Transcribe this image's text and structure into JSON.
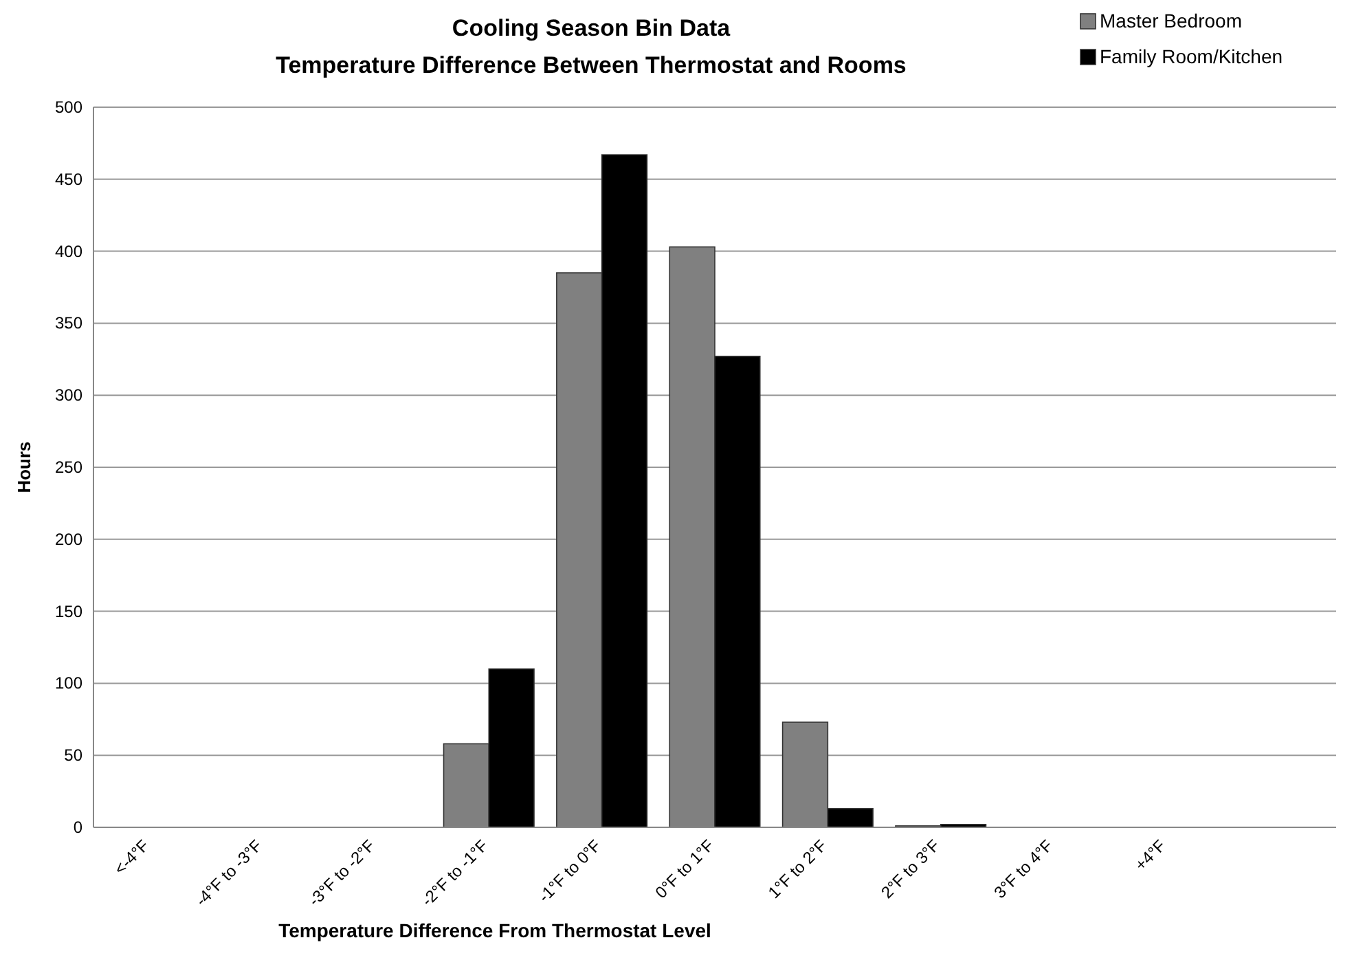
{
  "chart_data": {
    "type": "bar",
    "title": "Cooling Season Bin Data",
    "subtitle": "Temperature Difference Between Thermostat and Rooms",
    "xlabel": "Temperature Difference From Thermostat Level",
    "ylabel": "Hours",
    "categories": [
      "<-4°F",
      "-4°F to -3°F",
      "-3°F to -2°F",
      "-2°F to -1°F",
      "-1°F to 0°F",
      "0°F to 1°F",
      "1°F to 2°F",
      "2°F to 3°F",
      "3°F to 4°F",
      "+4°F",
      null
    ],
    "series": [
      {
        "name": "Master Bedroom",
        "color": "#808080",
        "values": [
          0,
          0,
          0,
          58,
          385,
          403,
          73,
          1,
          0,
          0,
          0
        ]
      },
      {
        "name": "Family Room/Kitchen",
        "color": "#000000",
        "values": [
          0,
          0,
          0,
          110,
          467,
          327,
          13,
          2,
          0,
          0,
          0
        ]
      }
    ],
    "ylim": [
      0,
      500
    ],
    "yticks": [
      0,
      50,
      100,
      150,
      200,
      250,
      300,
      350,
      400,
      450,
      500
    ],
    "grid": "y",
    "legend": "top right"
  }
}
